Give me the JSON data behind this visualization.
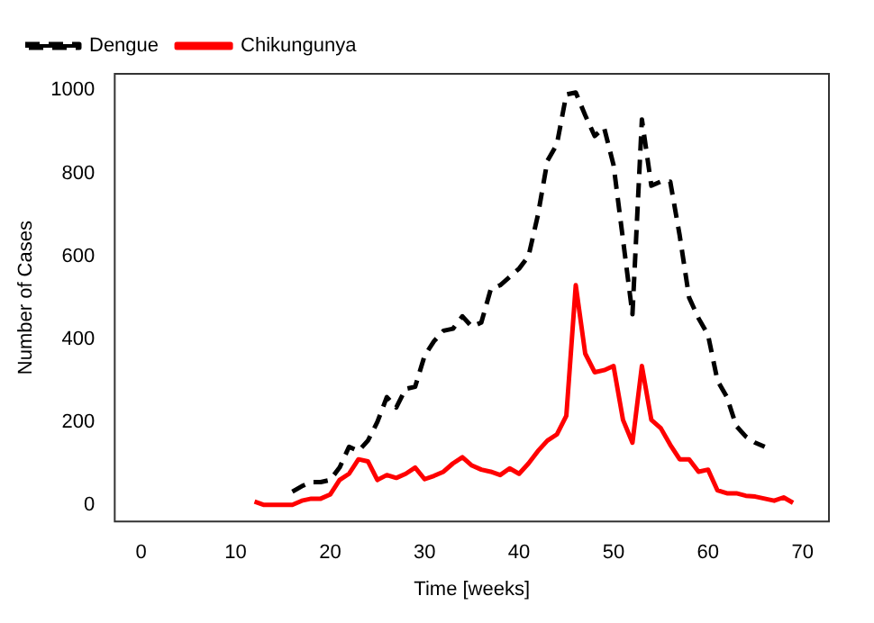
{
  "chart_data": {
    "type": "line",
    "xlabel": "Time [weeks]",
    "ylabel": "Number of Cases",
    "xlim": [
      -2.8,
      72.8
    ],
    "xticks": [
      0,
      10,
      20,
      30,
      40,
      50,
      60,
      70
    ],
    "ylim": [
      -40,
      1040
    ],
    "yticks": [
      0,
      200,
      400,
      600,
      800,
      1000
    ],
    "grid": false,
    "legend": "top left",
    "marker": "none",
    "series": [
      {
        "name": "Dengue",
        "color": "#000000",
        "line_style": "dashed",
        "x": [
          16,
          17,
          18,
          19,
          20,
          21,
          22,
          23,
          24,
          25,
          26,
          27,
          28,
          29,
          30,
          31,
          32,
          33,
          34,
          35,
          36,
          37,
          38,
          39,
          40,
          41,
          42,
          43,
          44,
          45,
          46,
          47,
          48,
          49,
          50,
          51,
          52,
          53,
          54,
          55,
          56,
          57,
          58,
          59,
          60,
          61,
          62,
          63,
          64,
          65,
          66
        ],
        "values": [
          32,
          45,
          55,
          55,
          60,
          90,
          140,
          130,
          155,
          200,
          260,
          235,
          280,
          285,
          360,
          395,
          420,
          425,
          455,
          430,
          440,
          520,
          530,
          550,
          570,
          600,
          700,
          830,
          870,
          990,
          995,
          940,
          890,
          910,
          820,
          640,
          460,
          930,
          770,
          780,
          780,
          650,
          500,
          450,
          410,
          300,
          260,
          190,
          165,
          150,
          140
        ]
      },
      {
        "name": "Chikungunya",
        "color": "#ff0000",
        "line_style": "solid",
        "x": [
          12,
          13,
          14,
          15,
          16,
          17,
          18,
          19,
          20,
          21,
          22,
          23,
          24,
          25,
          26,
          27,
          28,
          29,
          30,
          31,
          32,
          33,
          34,
          35,
          36,
          37,
          38,
          39,
          40,
          41,
          42,
          43,
          44,
          45,
          46,
          47,
          48,
          49,
          50,
          51,
          52,
          53,
          54,
          55,
          56,
          57,
          58,
          59,
          60,
          61,
          62,
          63,
          64,
          65,
          66,
          67,
          68,
          69
        ],
        "values": [
          8,
          0,
          0,
          0,
          0,
          10,
          15,
          15,
          25,
          60,
          75,
          110,
          105,
          60,
          72,
          65,
          75,
          90,
          62,
          70,
          80,
          100,
          115,
          95,
          85,
          80,
          72,
          88,
          75,
          100,
          130,
          155,
          170,
          215,
          530,
          365,
          320,
          325,
          335,
          205,
          150,
          335,
          205,
          185,
          145,
          110,
          110,
          80,
          85,
          35,
          28,
          28,
          22,
          20,
          15,
          10,
          18,
          5
        ]
      }
    ]
  }
}
